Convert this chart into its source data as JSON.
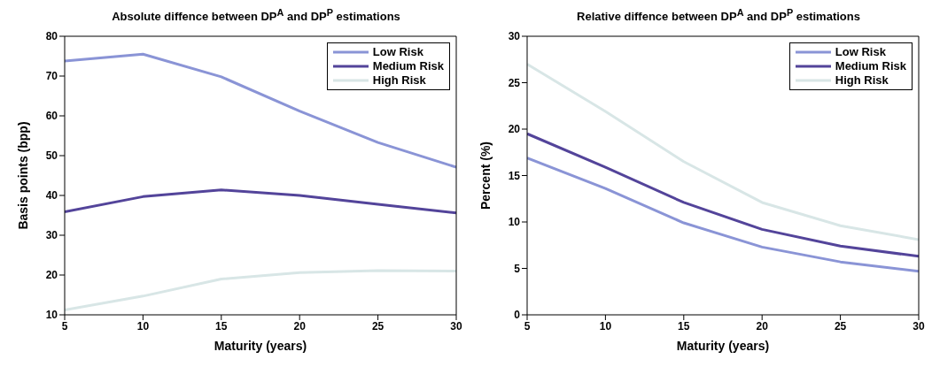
{
  "chart_data": [
    {
      "type": "line",
      "title": "Absolute diffence between DP$^{A}$ and DP$^{P}$ estimations",
      "xlabel": "Maturity (years)",
      "ylabel": "Basis points (bpp)",
      "x": [
        5,
        10,
        15,
        20,
        25,
        30
      ],
      "xlim": [
        5,
        30
      ],
      "xticks": [
        5,
        10,
        15,
        20,
        25,
        30
      ],
      "ylim": [
        10,
        80
      ],
      "yticks": [
        10,
        20,
        30,
        40,
        50,
        60,
        70,
        80
      ],
      "grid": false,
      "legend": "top right",
      "marker": "none",
      "series": [
        {
          "name": "Low Risk",
          "color": "#8a94d6",
          "values": [
            73.8,
            75.5,
            69.8,
            61.2,
            53.3,
            47.1
          ]
        },
        {
          "name": "Medium Risk",
          "color": "#53449a",
          "values": [
            35.9,
            39.7,
            41.4,
            40.0,
            37.8,
            35.6
          ]
        },
        {
          "name": "High Risk",
          "color": "#d8e6e6",
          "values": [
            11.2,
            14.7,
            19.0,
            20.6,
            21.1,
            21.0
          ]
        }
      ]
    },
    {
      "type": "line",
      "title": "Relative diffence between DP$^{A}$ and DP$^{P}$ estimations",
      "xlabel": "Maturity (years)",
      "ylabel": "Percent (%)",
      "x": [
        5,
        10,
        15,
        20,
        25,
        30
      ],
      "xlim": [
        5,
        30
      ],
      "xticks": [
        5,
        10,
        15,
        20,
        25,
        30
      ],
      "ylim": [
        0,
        30
      ],
      "yticks": [
        0,
        5,
        10,
        15,
        20,
        25,
        30
      ],
      "grid": false,
      "legend": "top right",
      "marker": "none",
      "series": [
        {
          "name": "Low Risk",
          "color": "#8a94d6",
          "values": [
            16.9,
            13.6,
            9.9,
            7.3,
            5.7,
            4.7
          ]
        },
        {
          "name": "Medium Risk",
          "color": "#53449a",
          "values": [
            19.5,
            15.9,
            12.1,
            9.2,
            7.4,
            6.3
          ]
        },
        {
          "name": "High Risk",
          "color": "#d8e6e6",
          "values": [
            27.0,
            21.9,
            16.5,
            12.1,
            9.6,
            8.1
          ]
        }
      ]
    }
  ]
}
